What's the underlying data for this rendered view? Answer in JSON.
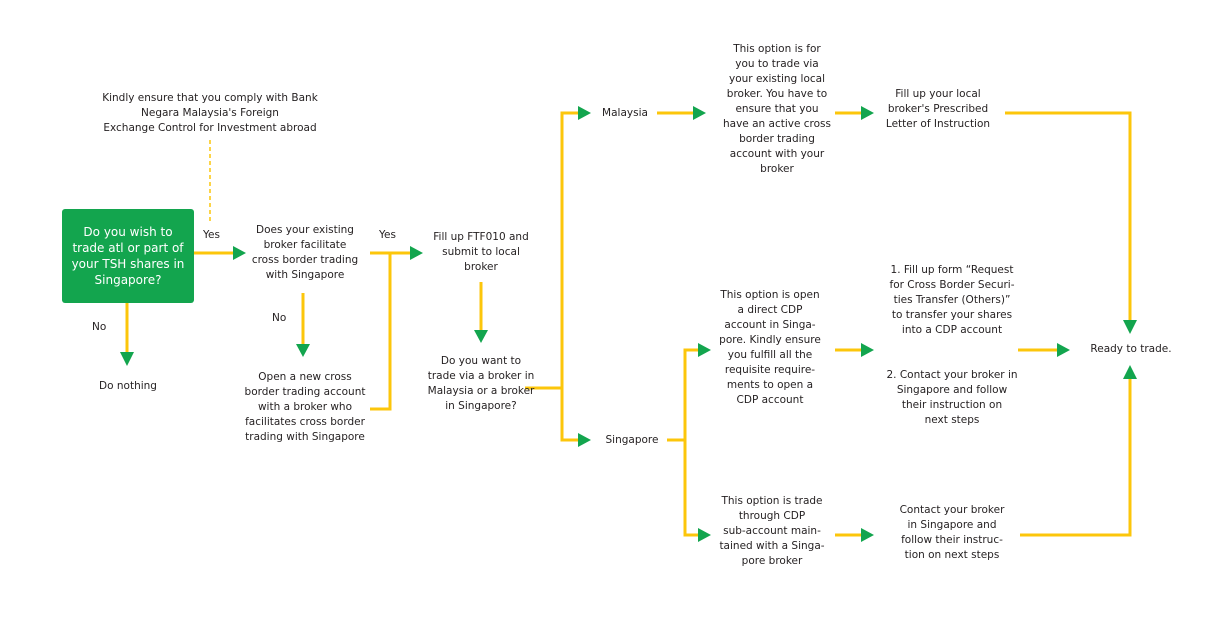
{
  "colors": {
    "start_box": "#13a54e",
    "connector": "#fcc60b",
    "arrowhead": "#13a54e"
  },
  "nodes": {
    "note": "Kindly ensure that you comply with Bank\nNegara Malaysia's Foreign\nExchange Control for Investment abroad",
    "start": "Do you wish to\ntrade atl or part of\nyour TSH shares in\nSingapore?",
    "do_nothing": "Do nothing",
    "existing_broker": "Does your existing\nbroker facilitate\ncross border trading\nwith Singapore",
    "open_new": "Open a new cross\nborder trading account\nwith a broker who\nfacilitates cross border\ntrading with Singapore",
    "fill_ftf": "Fill up FTF010 and\nsubmit to local\nbroker",
    "choose_broker": "Do you want to\ntrade via a broker in\nMalaysia or a broker\nin Singapore?",
    "malaysia": "Malaysia",
    "singapore": "Singapore",
    "malaysia_option": "This option is for\nyou to trade via\nyour existing local\nbroker. You have to\nensure that you\nhave an active cross\nborder trading\naccount with your\nbroker",
    "fill_loi": "Fill up your local\nbroker's Prescribed\nLetter of Instruction",
    "cdp_option": "This option is open\na direct CDP\naccount in Singa-\npore. Kindly ensure\nyou fulfill all the\nrequisite require-\nments to open a\nCDP account",
    "cdp_step1": "1.  Fill up form “Request\nfor Cross Border Securi-\nties Transfer (Others)”\nto transfer your shares\ninto a CDP account",
    "cdp_step2": "2. Contact your broker in\nSingapore and follow\ntheir instruction on\nnext steps",
    "sub_option": "This option is trade\nthrough CDP\nsub-account main-\ntained with a Singa-\npore broker",
    "contact_broker": "Contact your broker\nin Singapore and\nfollow their instruc-\ntion on next steps",
    "ready": "Ready to trade."
  },
  "edge_labels": {
    "yes1": "Yes",
    "no1": "No",
    "yes2": "Yes",
    "no2": "No"
  }
}
